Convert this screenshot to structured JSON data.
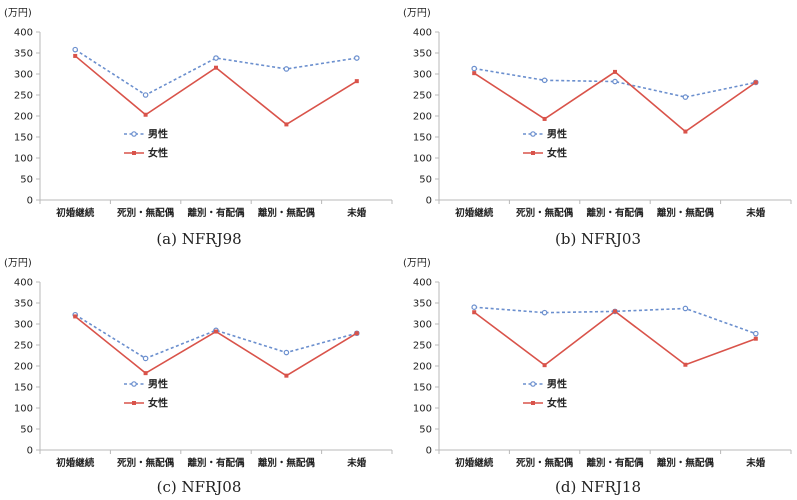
{
  "colors": {
    "male": "#6b8fce",
    "female": "#d9534a",
    "axis": "#b8b8b8"
  },
  "chart_data": [
    {
      "type": "line",
      "caption": "(a)  NFRJ98",
      "unit": "(万円)",
      "categories": [
        "初婚継続",
        "死別・無配偶",
        "離別・有配偶",
        "離別・無配偶",
        "未婚"
      ],
      "yticks": [
        0,
        50,
        100,
        150,
        200,
        250,
        300,
        350,
        400
      ],
      "ylim": [
        0,
        400
      ],
      "legend": [
        "男性",
        "女性"
      ],
      "series": [
        {
          "name": "男性",
          "values": [
            358,
            250,
            338,
            312,
            338
          ]
        },
        {
          "name": "女性",
          "values": [
            343,
            203,
            315,
            180,
            283
          ]
        }
      ]
    },
    {
      "type": "line",
      "caption": "(b)  NFRJ03",
      "unit": "(万円)",
      "categories": [
        "初婚継続",
        "死別・無配偶",
        "離別・有配偶",
        "離別・無配偶",
        "未婚"
      ],
      "yticks": [
        0,
        50,
        100,
        150,
        200,
        250,
        300,
        350,
        400
      ],
      "ylim": [
        0,
        400
      ],
      "legend": [
        "男性",
        "女性"
      ],
      "series": [
        {
          "name": "男性",
          "values": [
            313,
            285,
            282,
            245,
            280
          ]
        },
        {
          "name": "女性",
          "values": [
            302,
            193,
            305,
            163,
            280
          ]
        }
      ]
    },
    {
      "type": "line",
      "caption": "(c)  NFRJ08",
      "unit": "(万円)",
      "categories": [
        "初婚継続",
        "死別・無配偶",
        "離別・有配偶",
        "離別・無配偶",
        "未婚"
      ],
      "yticks": [
        0,
        50,
        100,
        150,
        200,
        250,
        300,
        350,
        400
      ],
      "ylim": [
        0,
        400
      ],
      "legend": [
        "男性",
        "女性"
      ],
      "series": [
        {
          "name": "男性",
          "values": [
            322,
            218,
            285,
            232,
            278
          ]
        },
        {
          "name": "女性",
          "values": [
            318,
            183,
            282,
            177,
            278
          ]
        }
      ]
    },
    {
      "type": "line",
      "caption": "(d)  NFRJ18",
      "unit": "(万円)",
      "categories": [
        "初婚継続",
        "死別・無配偶",
        "離別・有配偶",
        "離別・無配偶",
        "未婚"
      ],
      "yticks": [
        0,
        50,
        100,
        150,
        200,
        250,
        300,
        350,
        400
      ],
      "ylim": [
        0,
        400
      ],
      "legend": [
        "男性",
        "女性"
      ],
      "series": [
        {
          "name": "男性",
          "values": [
            340,
            327,
            330,
            337,
            277
          ]
        },
        {
          "name": "女性",
          "values": [
            328,
            202,
            330,
            203,
            265
          ]
        }
      ]
    }
  ]
}
